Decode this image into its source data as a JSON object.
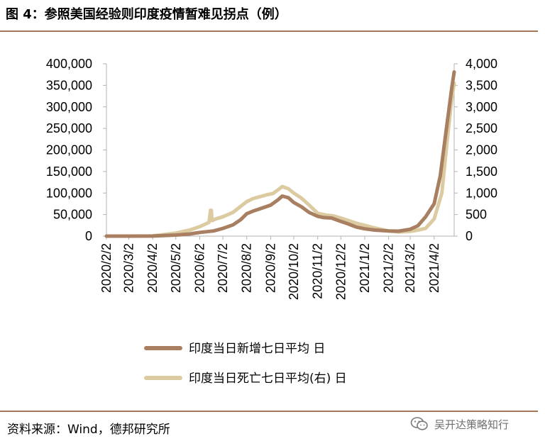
{
  "header": {
    "title": "图 4：参照美国经验则印度疫情暂难见拐点（例）"
  },
  "footer": {
    "source": "资料来源：Wind，德邦研究所",
    "watermark": "吴开达策略知行",
    "watermark_icon": "wechat-icon"
  },
  "colors": {
    "rule": "#a5765a",
    "series_new_cases": "#a87f61",
    "series_deaths": "#dccba1",
    "axis": "#b3b3b3"
  },
  "chart_data": {
    "type": "line",
    "title": "",
    "x_tick_labels": [
      "2020/2/2",
      "2020/3/2",
      "2020/4/2",
      "2020/5/2",
      "2020/6/2",
      "2020/7/2",
      "2020/8/2",
      "2020/9/2",
      "2020/10/2",
      "2020/11/2",
      "2020/12/2",
      "2021/1/2",
      "2021/2/2",
      "2021/3/2",
      "2021/4/2"
    ],
    "x_range": [
      "2020-02-02",
      "2021-04-28"
    ],
    "y_left": {
      "min": 0,
      "max": 400000,
      "ticks": [
        "0",
        "50,000",
        "100,000",
        "150,000",
        "200,000",
        "250,000",
        "300,000",
        "350,000",
        "400,000"
      ]
    },
    "y_right": {
      "min": 0,
      "max": 4000,
      "ticks": [
        "0",
        "500",
        "1,000",
        "1,500",
        "2,000",
        "2,500",
        "3,000",
        "3,500",
        "4,000"
      ]
    },
    "legend": {
      "placement": "bottom"
    },
    "series": [
      {
        "name": "印度当日新增七日平均 日",
        "axis": "left",
        "x": [
          "2020-02-02",
          "2020-03-02",
          "2020-04-02",
          "2020-05-02",
          "2020-05-20",
          "2020-06-02",
          "2020-06-20",
          "2020-07-02",
          "2020-07-15",
          "2020-07-25",
          "2020-08-02",
          "2020-08-10",
          "2020-08-20",
          "2020-09-02",
          "2020-09-12",
          "2020-09-17",
          "2020-09-25",
          "2020-10-02",
          "2020-10-12",
          "2020-10-22",
          "2020-11-02",
          "2020-11-10",
          "2020-11-20",
          "2020-12-02",
          "2020-12-12",
          "2020-12-22",
          "2021-01-02",
          "2021-01-15",
          "2021-02-02",
          "2021-02-15",
          "2021-03-02",
          "2021-03-12",
          "2021-03-22",
          "2021-04-02",
          "2021-04-10",
          "2021-04-18",
          "2021-04-25",
          "2021-04-28"
        ],
        "values": [
          0,
          10,
          200,
          2500,
          5000,
          8500,
          12000,
          18000,
          26000,
          38000,
          52000,
          58000,
          64000,
          72000,
          85000,
          93000,
          89000,
          78000,
          68000,
          55000,
          46000,
          43000,
          42000,
          34000,
          28000,
          21000,
          17000,
          14000,
          12000,
          11500,
          16000,
          24000,
          45000,
          75000,
          140000,
          250000,
          345000,
          381000
        ]
      },
      {
        "name": "印度当日死亡七日平均(右) 日",
        "axis": "right",
        "x": [
          "2020-02-02",
          "2020-03-02",
          "2020-04-02",
          "2020-05-02",
          "2020-05-20",
          "2020-06-02",
          "2020-06-14",
          "2020-06-16",
          "2020-06-17",
          "2020-06-18",
          "2020-06-23",
          "2020-07-02",
          "2020-07-15",
          "2020-07-25",
          "2020-08-02",
          "2020-08-10",
          "2020-08-20",
          "2020-08-28",
          "2020-09-05",
          "2020-09-12",
          "2020-09-17",
          "2020-09-25",
          "2020-10-02",
          "2020-10-12",
          "2020-10-22",
          "2020-11-02",
          "2020-11-12",
          "2020-11-22",
          "2020-12-02",
          "2020-12-12",
          "2020-12-22",
          "2021-01-02",
          "2021-01-15",
          "2021-02-02",
          "2021-02-15",
          "2021-03-02",
          "2021-03-12",
          "2021-03-22",
          "2021-04-02",
          "2021-04-12",
          "2021-04-20",
          "2021-04-25",
          "2021-04-28"
        ],
        "values": [
          0,
          0,
          5,
          70,
          140,
          220,
          320,
          600,
          600,
          360,
          400,
          450,
          550,
          690,
          800,
          870,
          920,
          960,
          990,
          1080,
          1150,
          1100,
          1000,
          880,
          720,
          530,
          490,
          470,
          420,
          360,
          300,
          250,
          190,
          120,
          95,
          110,
          140,
          180,
          400,
          1000,
          2400,
          3200,
          3550
        ]
      }
    ]
  }
}
